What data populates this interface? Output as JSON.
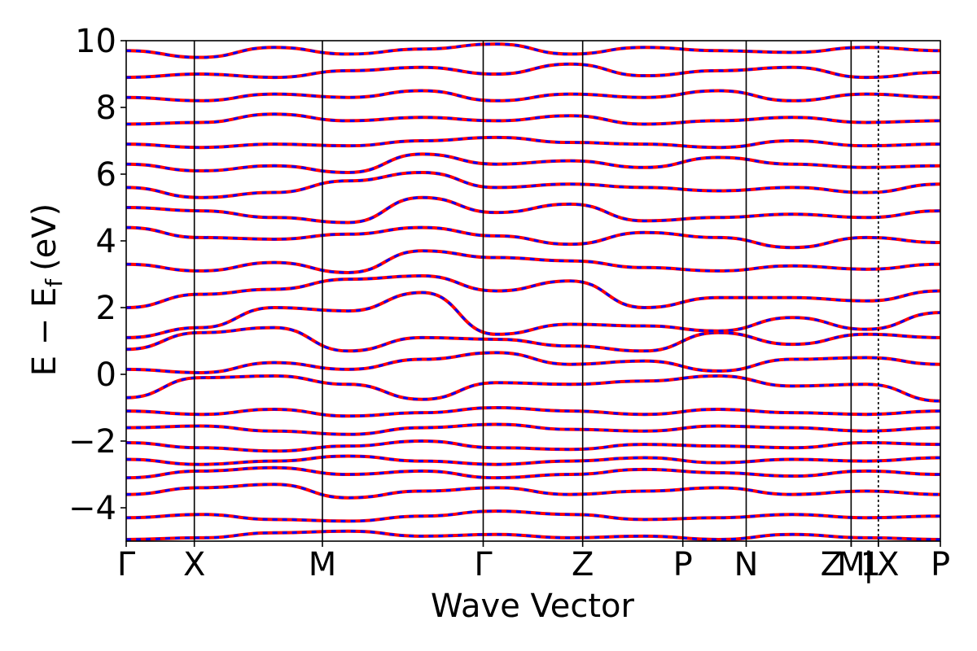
{
  "chart_data": {
    "type": "line",
    "title": "",
    "xlabel": "Wave Vector",
    "ylabel": "E − E",
    "ylabel_subscript": "f",
    "ylabel_unit": "(eV)",
    "ylim": [
      -5,
      10
    ],
    "yticks": [
      -4,
      -2,
      0,
      2,
      4,
      6,
      8,
      10
    ],
    "ytick_labels": [
      "−4",
      "−2",
      "0",
      "2",
      "4",
      "6",
      "8",
      "10"
    ],
    "kpath_ticks": [
      {
        "label": "Γ",
        "k": 0
      },
      {
        "label": "X",
        "k": 1
      },
      {
        "label": "M",
        "k": 2.88
      },
      {
        "label": "Γ",
        "k": 5.24
      },
      {
        "label": "Z",
        "k": 6.7
      },
      {
        "label": "P",
        "k": 8.17
      },
      {
        "label": "N",
        "k": 9.1
      },
      {
        "label": "Z",
        "k": 10.64
      },
      {
        "label": "M",
        "k": 10.64
      },
      {
        "label": "1",
        "k": 10.64
      },
      {
        "label": "|",
        "k": 11.04
      },
      {
        "label": "X",
        "k": 11.04
      },
      {
        "label": "P",
        "k": 11.95
      }
    ],
    "xlim": [
      0,
      11.95
    ],
    "grid": false,
    "series_styles": [
      {
        "color": "#ff0000",
        "linestyle": "solid"
      },
      {
        "color": "#0000ff",
        "linestyle": "dashed"
      }
    ],
    "bands": [
      [
        -4.95,
        -4.9,
        -4.75,
        -4.7,
        -4.85,
        -4.8,
        -4.9,
        -4.85,
        -4.95,
        -4.8,
        -4.9,
        -4.95
      ],
      [
        -4.3,
        -4.2,
        -4.35,
        -4.4,
        -4.25,
        -4.1,
        -4.2,
        -4.35,
        -4.3,
        -4.2,
        -4.3,
        -4.25
      ],
      [
        -3.6,
        -3.4,
        -3.3,
        -3.7,
        -3.5,
        -3.4,
        -3.6,
        -3.5,
        -3.4,
        -3.6,
        -3.5,
        -3.6
      ],
      [
        -3.1,
        -2.9,
        -2.8,
        -3.0,
        -2.9,
        -3.1,
        -3.0,
        -2.85,
        -2.95,
        -3.05,
        -2.9,
        -3.0
      ],
      [
        -2.55,
        -2.7,
        -2.6,
        -2.45,
        -2.6,
        -2.7,
        -2.6,
        -2.5,
        -2.65,
        -2.55,
        -2.6,
        -2.5
      ],
      [
        -2.05,
        -2.2,
        -2.3,
        -2.15,
        -2.0,
        -2.2,
        -2.25,
        -2.1,
        -2.15,
        -2.2,
        -2.05,
        -2.1
      ],
      [
        -1.6,
        -1.55,
        -1.7,
        -1.8,
        -1.6,
        -1.5,
        -1.65,
        -1.7,
        -1.55,
        -1.6,
        -1.7,
        -1.6
      ],
      [
        -1.1,
        -1.2,
        -1.05,
        -1.25,
        -1.15,
        -1.0,
        -1.1,
        -1.2,
        -1.05,
        -1.15,
        -1.2,
        -1.1
      ],
      [
        -0.7,
        -0.1,
        -0.05,
        -0.3,
        -0.75,
        -0.25,
        -0.3,
        -0.2,
        -0.05,
        -0.35,
        -0.3,
        -0.8
      ],
      [
        0.15,
        0.05,
        0.35,
        0.15,
        0.45,
        0.65,
        0.3,
        0.4,
        0.1,
        0.45,
        0.5,
        0.3
      ],
      [
        0.75,
        1.25,
        1.4,
        0.7,
        1.1,
        1.05,
        0.85,
        0.7,
        1.25,
        0.9,
        1.2,
        1.1
      ],
      [
        1.1,
        1.4,
        2.0,
        1.9,
        2.45,
        1.2,
        1.5,
        1.45,
        1.3,
        1.7,
        1.35,
        1.85
      ],
      [
        2.0,
        2.4,
        2.55,
        2.85,
        2.95,
        2.5,
        2.8,
        2.0,
        2.3,
        2.3,
        2.2,
        2.5
      ],
      [
        3.3,
        3.1,
        3.35,
        3.05,
        3.7,
        3.5,
        3.4,
        3.2,
        3.1,
        3.25,
        3.15,
        3.3
      ],
      [
        4.4,
        4.1,
        4.05,
        4.2,
        4.4,
        4.15,
        3.9,
        4.25,
        4.1,
        3.8,
        4.1,
        3.95
      ],
      [
        5.0,
        4.9,
        4.7,
        4.55,
        5.3,
        4.85,
        5.1,
        4.6,
        4.7,
        4.8,
        4.7,
        4.9
      ],
      [
        5.6,
        5.3,
        5.45,
        5.8,
        6.05,
        5.6,
        5.7,
        5.6,
        5.5,
        5.6,
        5.45,
        5.7
      ],
      [
        6.3,
        6.1,
        6.25,
        6.05,
        6.6,
        6.3,
        6.4,
        6.2,
        6.5,
        6.3,
        6.2,
        6.25
      ],
      [
        6.9,
        6.8,
        6.9,
        6.85,
        7.0,
        7.1,
        6.95,
        6.9,
        6.8,
        7.0,
        6.85,
        6.9
      ],
      [
        7.5,
        7.55,
        7.8,
        7.6,
        7.7,
        7.6,
        7.75,
        7.5,
        7.6,
        7.7,
        7.55,
        7.6
      ],
      [
        8.3,
        8.2,
        8.4,
        8.3,
        8.5,
        8.2,
        8.4,
        8.3,
        8.5,
        8.2,
        8.4,
        8.3
      ],
      [
        8.9,
        9.0,
        8.9,
        9.1,
        9.2,
        9.0,
        9.3,
        8.95,
        9.1,
        9.2,
        8.9,
        9.05
      ],
      [
        9.7,
        9.5,
        9.8,
        9.6,
        9.75,
        9.9,
        9.6,
        9.8,
        9.7,
        9.65,
        9.8,
        9.7
      ]
    ]
  }
}
